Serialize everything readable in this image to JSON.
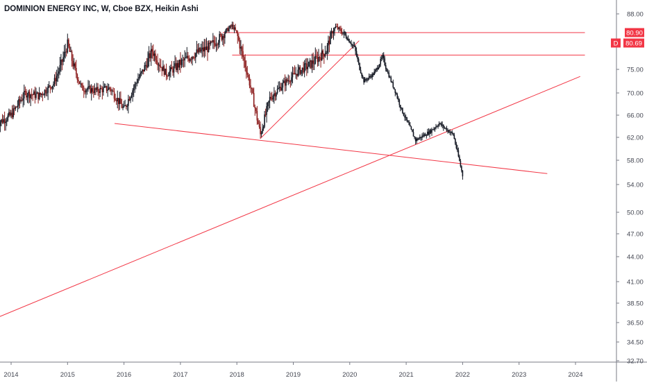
{
  "header": {
    "title": "DOMINION ENERGY INC, W, Cboe BZX, Heikin Ashi"
  },
  "price_scale": {
    "ticks": [
      "88.00",
      "80.90",
      "80.69",
      "75.00",
      "70.00",
      "66.00",
      "62.00",
      "58.00",
      "54.00",
      "50.00",
      "47.00",
      "44.00",
      "41.00",
      "38.50",
      "36.50",
      "34.50",
      "32.70"
    ],
    "badge_d": "D"
  },
  "time_scale": {
    "ticks": [
      "2014",
      "2015",
      "2016",
      "2017",
      "2018",
      "2019",
      "2020",
      "2021",
      "2022",
      "2023",
      "2024"
    ]
  },
  "colors": {
    "up_candle": "#131722",
    "down_candle": "#8b1a1a",
    "line": "#f23645",
    "grid": "#e0e3eb",
    "axis_text": "#434651"
  },
  "chart_data": {
    "type": "candlestick",
    "title": "DOMINION ENERGY INC, W, Cboe BZX, Heikin Ashi",
    "y_scale": "log",
    "ylim": [
      32.7,
      88.0
    ],
    "xlim": [
      "2013-10",
      "2024-09"
    ],
    "series": [
      {
        "date": "2013-10",
        "close": 64.5
      },
      {
        "date": "2014-01",
        "close": 66.0
      },
      {
        "date": "2014-04",
        "close": 70.0
      },
      {
        "date": "2014-07",
        "close": 69.5
      },
      {
        "date": "2014-10",
        "close": 72.0
      },
      {
        "date": "2015-01",
        "close": 79.0
      },
      {
        "date": "2015-04",
        "close": 71.0
      },
      {
        "date": "2015-07",
        "close": 70.5
      },
      {
        "date": "2015-10",
        "close": 71.0
      },
      {
        "date": "2016-01",
        "close": 67.0
      },
      {
        "date": "2016-04",
        "close": 73.0
      },
      {
        "date": "2016-07",
        "close": 78.0
      },
      {
        "date": "2016-10",
        "close": 74.0
      },
      {
        "date": "2017-01",
        "close": 76.0
      },
      {
        "date": "2017-04",
        "close": 77.5
      },
      {
        "date": "2017-07",
        "close": 78.5
      },
      {
        "date": "2017-10",
        "close": 80.5
      },
      {
        "date": "2017-12",
        "close": 83.5
      },
      {
        "date": "2018-03",
        "close": 75.0
      },
      {
        "date": "2018-06",
        "close": 62.5
      },
      {
        "date": "2018-08",
        "close": 69.0
      },
      {
        "date": "2018-11",
        "close": 72.0
      },
      {
        "date": "2019-02",
        "close": 74.5
      },
      {
        "date": "2019-05",
        "close": 76.0
      },
      {
        "date": "2019-08",
        "close": 78.0
      },
      {
        "date": "2019-10",
        "close": 83.0
      },
      {
        "date": "2019-12",
        "close": 80.5
      },
      {
        "date": "2020-02",
        "close": 78.5
      },
      {
        "date": "2020-04",
        "close": 72.5
      },
      {
        "date": "2020-06",
        "close": 74.0
      },
      {
        "date": "2020-08",
        "close": 77.0
      },
      {
        "date": "2020-10",
        "close": 72.0
      },
      {
        "date": "2020-12",
        "close": 67.0
      },
      {
        "date": "2021-03",
        "close": 61.5
      },
      {
        "date": "2021-06",
        "close": 63.0
      },
      {
        "date": "2021-08",
        "close": 64.5
      },
      {
        "date": "2021-11",
        "close": 62.5
      },
      {
        "date": "2022-01",
        "close": 55.5
      }
    ],
    "lines": [
      {
        "from": {
          "date": "2017-10",
          "price": 80.9
        },
        "to": {
          "date": "2024-03",
          "price": 80.9
        }
      },
      {
        "from": {
          "date": "2017-12",
          "price": 77.3
        },
        "to": {
          "date": "2024-03",
          "price": 77.3
        }
      },
      {
        "from": {
          "date": "2015-11",
          "price": 64.5
        },
        "to": {
          "date": "2023-07",
          "price": 55.8
        }
      },
      {
        "from": {
          "date": "2018-06",
          "price": 61.8
        },
        "to": {
          "date": "2020-03",
          "price": 79.6
        }
      },
      {
        "from": {
          "date": "2013-10",
          "price": 37.0
        },
        "to": {
          "date": "2024-02",
          "price": 73.5
        }
      }
    ],
    "price_labels": [
      {
        "price": 80.9,
        "text": "80.90"
      },
      {
        "price": 80.69,
        "text": "80.69"
      }
    ]
  }
}
